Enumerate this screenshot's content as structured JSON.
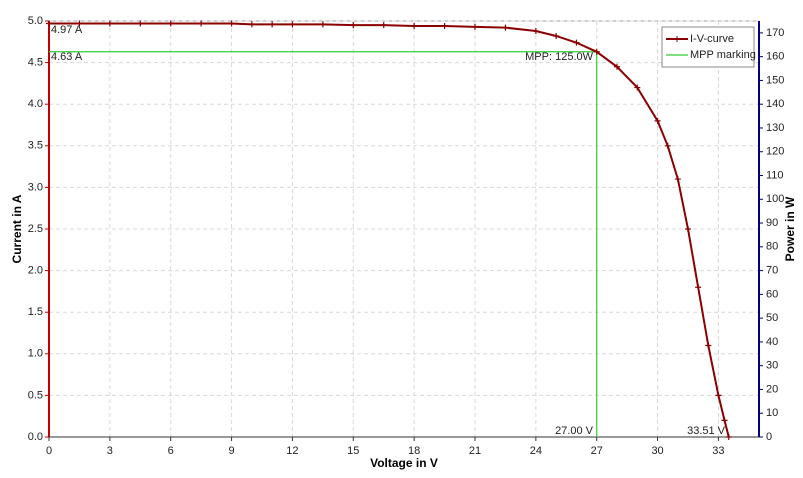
{
  "chart_data": {
    "type": "line",
    "x_label": "Voltage in V",
    "y_label": "Current in A",
    "y2_label": "Power in W",
    "xlim": [
      0,
      35
    ],
    "xticks": [
      0,
      3,
      6,
      9,
      12,
      15,
      18,
      21,
      24,
      27,
      30,
      33
    ],
    "ylim": [
      0,
      5
    ],
    "yticks": [
      {
        "value": 0,
        "label": "0.0"
      },
      0.5,
      {
        "value": 1,
        "label": "1.0"
      },
      1.5,
      {
        "value": 2,
        "label": "2.0"
      },
      2.5,
      {
        "value": 3,
        "label": "3.0"
      },
      3.5,
      {
        "value": 4,
        "label": "4.0"
      },
      4.5,
      {
        "value": 5,
        "label": "5.0"
      }
    ],
    "y2lim": [
      0,
      175
    ],
    "y2ticks": [
      0,
      10,
      20,
      30,
      40,
      50,
      60,
      70,
      80,
      90,
      100,
      110,
      120,
      130,
      140,
      150,
      160,
      170
    ],
    "grid": true,
    "legend": "top-right",
    "series": [
      {
        "name": "I-V-curve",
        "color": "#8b0000",
        "markers": true,
        "x": [
          0,
          1.5,
          3,
          4.5,
          6,
          7.5,
          9,
          10,
          11,
          12,
          13.5,
          15,
          16.5,
          18,
          19.5,
          21,
          22.5,
          24,
          25,
          26,
          27,
          28,
          29,
          30,
          30.5,
          31,
          31.5,
          32,
          32.5,
          33,
          33.3,
          33.51
        ],
        "values": [
          4.97,
          4.97,
          4.97,
          4.97,
          4.97,
          4.97,
          4.97,
          4.96,
          4.96,
          4.96,
          4.96,
          4.95,
          4.95,
          4.94,
          4.94,
          4.93,
          4.92,
          4.88,
          4.82,
          4.74,
          4.63,
          4.45,
          4.2,
          3.8,
          3.5,
          3.1,
          2.5,
          1.8,
          1.1,
          0.5,
          0.2,
          0
        ]
      },
      {
        "name": "MPP marking",
        "color": "#33cc33",
        "markers": false,
        "x": [
          0,
          27,
          27
        ],
        "values": [
          4.63,
          4.63,
          0
        ]
      }
    ],
    "annotations": [
      "4.97 A",
      "4.63 A",
      "MPP: 125.0W",
      "27.00 V",
      "33.51 V"
    ]
  }
}
